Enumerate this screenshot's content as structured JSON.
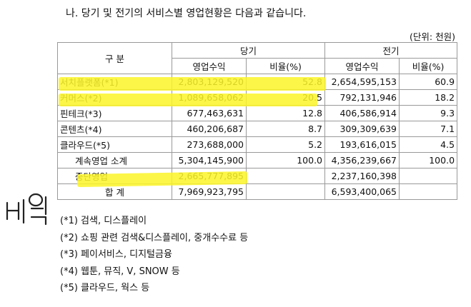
{
  "heading": "나. 당기 및 전기의 서비스별 영업현황은 다음과 같습니다.",
  "unit": "(단위: 천원)",
  "table": {
    "col_group": "구    분",
    "current_label": "당기",
    "prior_label": "전기",
    "sub_revenue": "영업수익",
    "sub_ratio": "비율(%)",
    "rows": [
      {
        "name": "서치플랫폼(*1)",
        "cur_rev": "2,803,129,520",
        "cur_pct": "52.8",
        "pri_rev": "2,654,595,153",
        "pri_pct": "60.9"
      },
      {
        "name": "커머스(*2)",
        "cur_rev": "1,089,658,062",
        "cur_pct": "20.5",
        "pri_rev": "792,131,946",
        "pri_pct": "18.2"
      },
      {
        "name": "핀테크(*3)",
        "cur_rev": "677,463,631",
        "cur_pct": "12.8",
        "pri_rev": "406,586,914",
        "pri_pct": "9.3"
      },
      {
        "name": "콘텐츠(*4)",
        "cur_rev": "460,206,687",
        "cur_pct": "8.7",
        "pri_rev": "309,309,639",
        "pri_pct": "7.1"
      },
      {
        "name": "클라우드(*5)",
        "cur_rev": "273,688,000",
        "cur_pct": "5.2",
        "pri_rev": "193,616,015",
        "pri_pct": "4.5"
      },
      {
        "name": "계속영업 소계",
        "cur_rev": "5,304,145,900",
        "cur_pct": "100.0",
        "pri_rev": "4,356,239,667",
        "pri_pct": "100.0"
      },
      {
        "name": "중단영업",
        "cur_rev": "2,665,777,895",
        "cur_pct": "",
        "pri_rev": "2,237,160,398",
        "pri_pct": ""
      },
      {
        "name": "합    계",
        "cur_rev": "7,969,923,795",
        "cur_pct": "",
        "pri_rev": "6,593,400,065",
        "pri_pct": ""
      }
    ]
  },
  "notes": [
    "(*1) 검색, 디스플레이",
    "(*2) 쇼핑 관련 검색&디스플레이, 중개수수료 등",
    "(*3) 페이서비스, 디지털금융",
    "(*4) 웹툰, 뮤직, V, SNOW 등",
    "(*5) 클라우드, 웍스 등"
  ],
  "highlight_color": "#fcf528",
  "scribble_color": "#222222"
}
